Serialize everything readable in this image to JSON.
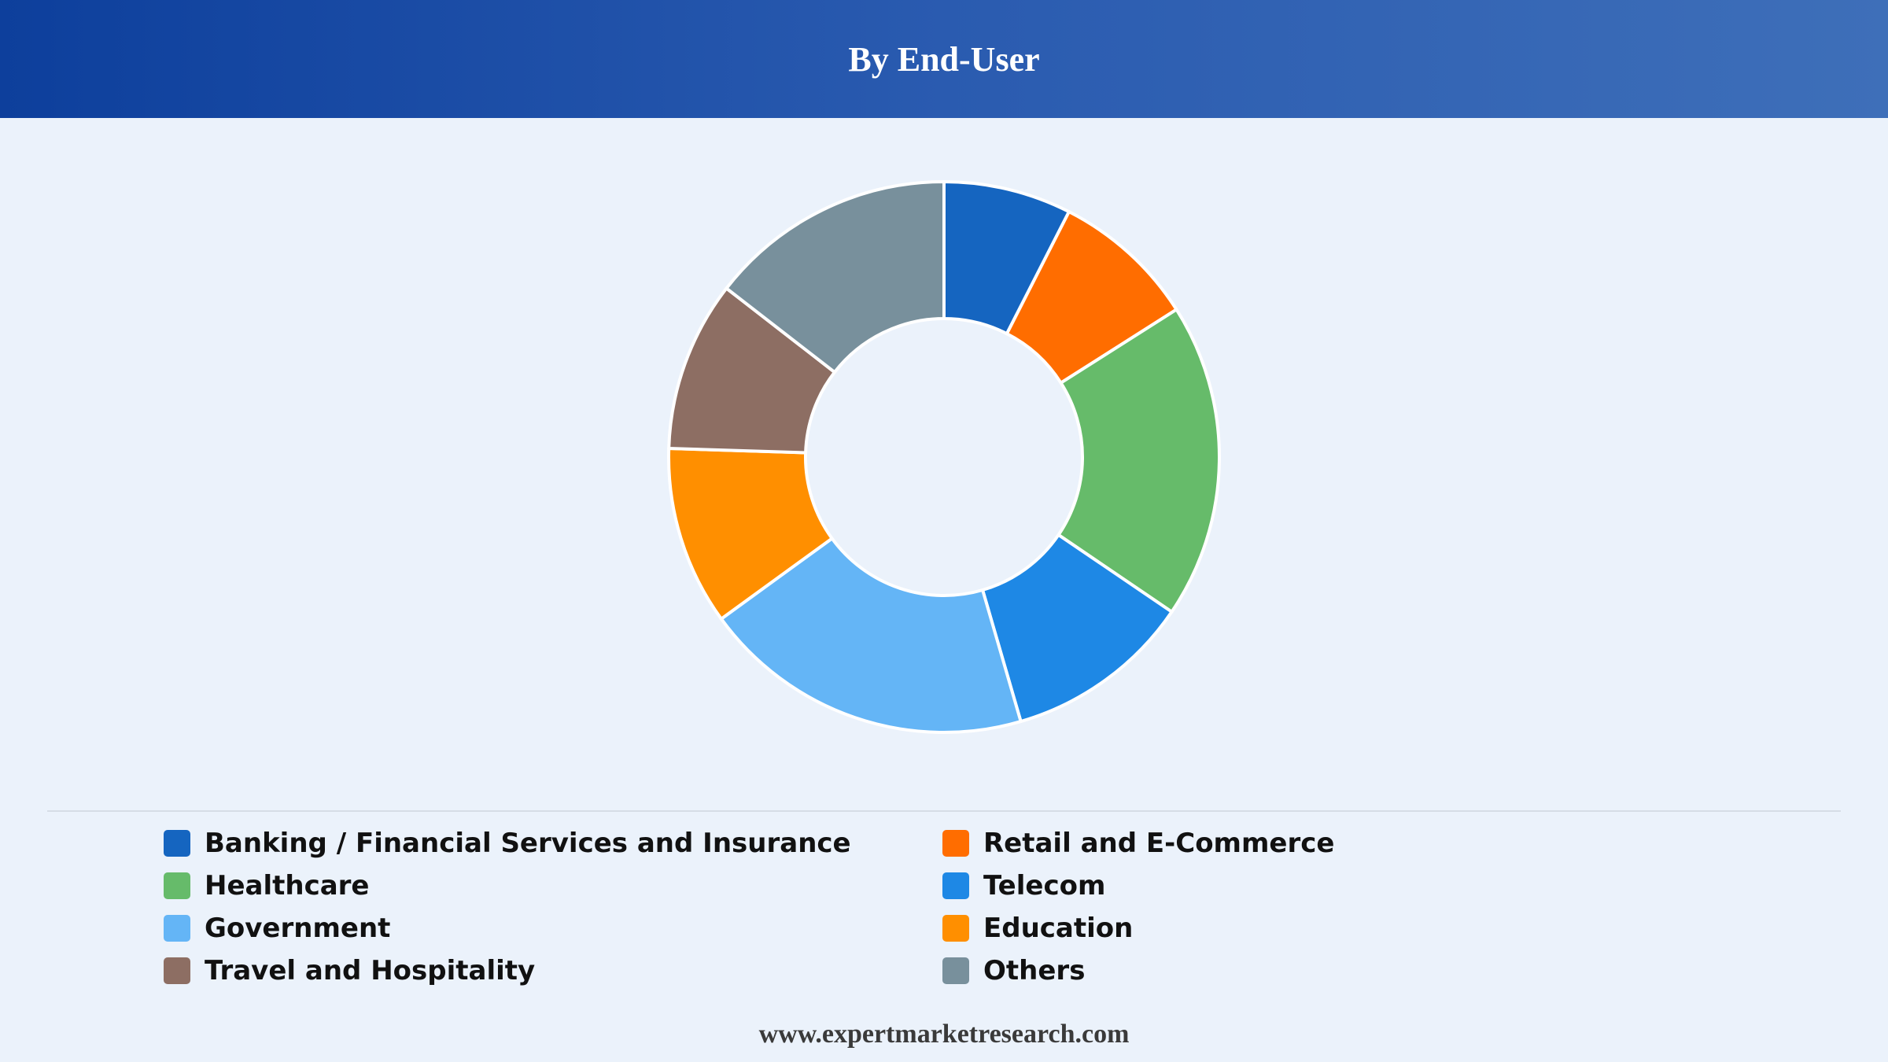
{
  "header": {
    "title": "By End-User"
  },
  "footer": {
    "url": "www.expertmarketresearch.com"
  },
  "chart_data": {
    "type": "pie",
    "donut": true,
    "title": "By End-User",
    "legend_position": "bottom",
    "slices": [
      {
        "label": "Banking / Financial Services and Insurance",
        "value": 7.5,
        "color": "#1565c0"
      },
      {
        "label": "Retail and E-Commerce",
        "value": 8.5,
        "color": "#ff6d00"
      },
      {
        "label": "Healthcare",
        "value": 18.5,
        "color": "#66bb6a"
      },
      {
        "label": "Telecom",
        "value": 11,
        "color": "#1e88e5"
      },
      {
        "label": "Government",
        "value": 19.5,
        "color": "#64b5f6"
      },
      {
        "label": "Education",
        "value": 10.5,
        "color": "#ff8f00"
      },
      {
        "label": "Travel and Hospitality",
        "value": 10,
        "color": "#8d6e63"
      },
      {
        "label": "Others",
        "value": 14.5,
        "color": "#78909c"
      }
    ]
  }
}
